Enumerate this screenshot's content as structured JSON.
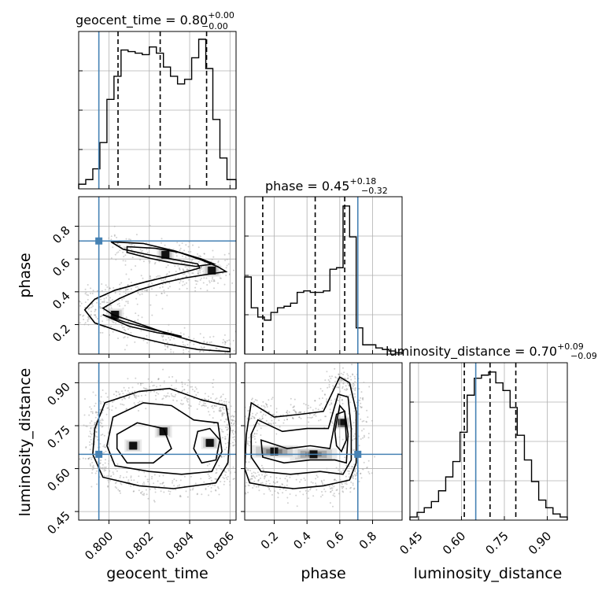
{
  "parameters": [
    {
      "name": "geocent_time",
      "title_prefix": "geocent_time = ",
      "median": "0.80",
      "upper": "+0.00",
      "lower": "−0.00",
      "range": [
        0.7985,
        0.8063
      ],
      "ticks": [
        "0.800",
        "0.802",
        "0.804",
        "0.806"
      ],
      "truth": 0.7995,
      "quantiles": [
        0.80045,
        0.80254,
        0.80484
      ]
    },
    {
      "name": "phase",
      "title_prefix": "phase = ",
      "median": "0.45",
      "upper": "+0.18",
      "lower": "−0.32",
      "range": [
        0.02,
        0.98
      ],
      "ticks": [
        "0.2",
        "0.4",
        "0.6",
        "0.8"
      ],
      "truth": 0.71,
      "quantiles": [
        0.13,
        0.45,
        0.63
      ]
    },
    {
      "name": "luminosity_distance",
      "title_prefix": "luminosity_distance = ",
      "median": "0.70",
      "upper": "+0.09",
      "lower": "−0.09",
      "range": [
        0.42,
        0.97
      ],
      "ticks": [
        "0.45",
        "0.60",
        "0.75",
        "0.90"
      ],
      "truth": 0.65,
      "quantiles": [
        0.61,
        0.7,
        0.79
      ]
    }
  ],
  "chart_data": {
    "type": "corner",
    "title": "",
    "grid": true,
    "truth_color": "#4682b4",
    "contour_color": "#000000",
    "histograms": [
      {
        "param": "geocent_time",
        "bin_edges": [
          0.7985,
          0.79885,
          0.7992,
          0.79955,
          0.7999,
          0.80025,
          0.8006,
          0.80095,
          0.8013,
          0.80165,
          0.802,
          0.80235,
          0.8027,
          0.80305,
          0.8034,
          0.80375,
          0.8041,
          0.80445,
          0.8048,
          0.80515,
          0.8055,
          0.80585,
          0.8063
        ],
        "counts": [
          0.03,
          0.06,
          0.13,
          0.3,
          0.58,
          0.73,
          0.9,
          0.89,
          0.88,
          0.87,
          0.92,
          0.88,
          0.79,
          0.73,
          0.68,
          0.71,
          0.85,
          0.97,
          0.78,
          0.45,
          0.2,
          0.06
        ]
      },
      {
        "param": "phase",
        "bin_edges": [
          0.02,
          0.06,
          0.1,
          0.14,
          0.18,
          0.22,
          0.26,
          0.3,
          0.34,
          0.38,
          0.42,
          0.46,
          0.5,
          0.54,
          0.58,
          0.62,
          0.66,
          0.7,
          0.74,
          0.78,
          0.82,
          0.86,
          0.9,
          0.94,
          0.98
        ],
        "counts": [
          0.5,
          0.3,
          0.24,
          0.22,
          0.27,
          0.3,
          0.31,
          0.33,
          0.4,
          0.41,
          0.4,
          0.4,
          0.41,
          0.55,
          0.56,
          0.96,
          0.76,
          0.17,
          0.06,
          0.06,
          0.04,
          0.03,
          0.02,
          0.01
        ]
      },
      {
        "param": "luminosity_distance",
        "bin_edges": [
          0.42,
          0.445,
          0.47,
          0.495,
          0.52,
          0.545,
          0.57,
          0.595,
          0.62,
          0.645,
          0.67,
          0.695,
          0.72,
          0.745,
          0.77,
          0.795,
          0.82,
          0.845,
          0.87,
          0.895,
          0.92,
          0.945,
          0.97
        ],
        "counts": [
          0.02,
          0.05,
          0.08,
          0.12,
          0.19,
          0.28,
          0.38,
          0.57,
          0.81,
          0.92,
          0.94,
          0.96,
          0.89,
          0.84,
          0.73,
          0.55,
          0.39,
          0.25,
          0.13,
          0.08,
          0.04,
          0.02
        ]
      }
    ],
    "pairs": [
      {
        "x_param": "geocent_time",
        "y_param": "phase",
        "contours": [
          [
            [
              0.8001,
              0.705
            ],
            [
              0.8017,
              0.695
            ],
            [
              0.8033,
              0.648
            ],
            [
              0.8045,
              0.598
            ],
            [
              0.8054,
              0.553
            ],
            [
              0.8058,
              0.523
            ],
            [
              0.8048,
              0.505
            ],
            [
              0.8038,
              0.485
            ],
            [
              0.8027,
              0.455
            ],
            [
              0.8015,
              0.412
            ],
            [
              0.8005,
              0.358
            ],
            [
              0.7997,
              0.3
            ],
            [
              0.8002,
              0.26
            ],
            [
              0.8015,
              0.205
            ],
            [
              0.803,
              0.14
            ],
            [
              0.8046,
              0.085
            ],
            [
              0.806,
              0.055
            ],
            [
              0.806,
              0.035
            ],
            [
              0.8044,
              0.048
            ],
            [
              0.8028,
              0.083
            ],
            [
              0.8012,
              0.13
            ],
            [
              0.7993,
              0.21
            ],
            [
              0.7988,
              0.29
            ],
            [
              0.7993,
              0.355
            ],
            [
              0.8003,
              0.41
            ],
            [
              0.8018,
              0.46
            ],
            [
              0.8033,
              0.505
            ],
            [
              0.8045,
              0.545
            ],
            [
              0.8044,
              0.57
            ],
            [
              0.8031,
              0.6
            ],
            [
              0.8018,
              0.63
            ],
            [
              0.8007,
              0.66
            ],
            [
              0.8001,
              0.705
            ]
          ],
          [
            [
              0.8009,
              0.675
            ],
            [
              0.8023,
              0.665
            ],
            [
              0.8035,
              0.64
            ],
            [
              0.8046,
              0.6
            ],
            [
              0.8052,
              0.57
            ],
            [
              0.8043,
              0.555
            ],
            [
              0.8032,
              0.575
            ],
            [
              0.802,
              0.605
            ],
            [
              0.8009,
              0.64
            ],
            [
              0.8009,
              0.675
            ]
          ],
          [
            [
              0.7997,
              0.26
            ],
            [
              0.8008,
              0.215
            ],
            [
              0.8022,
              0.17
            ],
            [
              0.8036,
              0.128
            ],
            [
              0.8024,
              0.15
            ],
            [
              0.801,
              0.19
            ],
            [
              0.7997,
              0.26
            ]
          ]
        ],
        "density_peaks": [
          [
            0.8028,
            0.625
          ],
          [
            0.8051,
            0.53
          ],
          [
            0.8003,
            0.26
          ]
        ]
      },
      {
        "x_param": "geocent_time",
        "y_param": "luminosity_distance",
        "contours": [
          [
            [
              0.7998,
              0.83
            ],
            [
              0.8015,
              0.87
            ],
            [
              0.803,
              0.88
            ],
            [
              0.8046,
              0.84
            ],
            [
              0.8058,
              0.82
            ],
            [
              0.806,
              0.74
            ],
            [
              0.8059,
              0.62
            ],
            [
              0.8053,
              0.55
            ],
            [
              0.8032,
              0.53
            ],
            [
              0.8015,
              0.54
            ],
            [
              0.7997,
              0.57
            ],
            [
              0.7992,
              0.65
            ],
            [
              0.7993,
              0.74
            ],
            [
              0.7998,
              0.83
            ]
          ],
          [
            [
              0.8002,
              0.78
            ],
            [
              0.8017,
              0.83
            ],
            [
              0.8031,
              0.82
            ],
            [
              0.8042,
              0.77
            ],
            [
              0.8054,
              0.76
            ],
            [
              0.8056,
              0.66
            ],
            [
              0.8051,
              0.59
            ],
            [
              0.8036,
              0.58
            ],
            [
              0.802,
              0.59
            ],
            [
              0.8003,
              0.61
            ],
            [
              0.7999,
              0.68
            ],
            [
              0.8002,
              0.78
            ]
          ],
          [
            [
              0.8004,
              0.72
            ],
            [
              0.8014,
              0.76
            ],
            [
              0.8027,
              0.74
            ],
            [
              0.8031,
              0.67
            ],
            [
              0.8022,
              0.62
            ],
            [
              0.8009,
              0.62
            ],
            [
              0.8004,
              0.67
            ],
            [
              0.8004,
              0.72
            ]
          ],
          [
            [
              0.8044,
              0.73
            ],
            [
              0.805,
              0.74
            ],
            [
              0.8055,
              0.7
            ],
            [
              0.8053,
              0.63
            ],
            [
              0.8046,
              0.62
            ],
            [
              0.8042,
              0.67
            ],
            [
              0.8044,
              0.73
            ]
          ]
        ],
        "density_peaks": [
          [
            0.8012,
            0.68
          ],
          [
            0.805,
            0.69
          ],
          [
            0.8027,
            0.73
          ]
        ]
      },
      {
        "x_param": "phase",
        "y_param": "luminosity_distance",
        "contours": [
          [
            [
              0.06,
              0.83
            ],
            [
              0.2,
              0.78
            ],
            [
              0.36,
              0.79
            ],
            [
              0.5,
              0.8
            ],
            [
              0.6,
              0.92
            ],
            [
              0.66,
              0.9
            ],
            [
              0.7,
              0.8
            ],
            [
              0.7,
              0.62
            ],
            [
              0.66,
              0.56
            ],
            [
              0.5,
              0.54
            ],
            [
              0.32,
              0.53
            ],
            [
              0.15,
              0.54
            ],
            [
              0.05,
              0.55
            ],
            [
              0.02,
              0.6
            ],
            [
              0.03,
              0.72
            ],
            [
              0.06,
              0.83
            ]
          ],
          [
            [
              0.1,
              0.77
            ],
            [
              0.25,
              0.73
            ],
            [
              0.4,
              0.74
            ],
            [
              0.53,
              0.74
            ],
            [
              0.59,
              0.86
            ],
            [
              0.65,
              0.85
            ],
            [
              0.67,
              0.74
            ],
            [
              0.67,
              0.63
            ],
            [
              0.62,
              0.58
            ],
            [
              0.48,
              0.59
            ],
            [
              0.3,
              0.58
            ],
            [
              0.12,
              0.59
            ],
            [
              0.06,
              0.64
            ],
            [
              0.06,
              0.72
            ],
            [
              0.1,
              0.77
            ]
          ],
          [
            [
              0.12,
              0.7
            ],
            [
              0.28,
              0.67
            ],
            [
              0.42,
              0.68
            ],
            [
              0.54,
              0.67
            ],
            [
              0.58,
              0.79
            ],
            [
              0.63,
              0.8
            ],
            [
              0.65,
              0.72
            ],
            [
              0.64,
              0.62
            ],
            [
              0.57,
              0.63
            ],
            [
              0.42,
              0.63
            ],
            [
              0.26,
              0.62
            ],
            [
              0.13,
              0.64
            ],
            [
              0.12,
              0.7
            ]
          ],
          [
            [
              0.57,
              0.73
            ],
            [
              0.6,
              0.82
            ],
            [
              0.63,
              0.8
            ],
            [
              0.64,
              0.7
            ],
            [
              0.61,
              0.66
            ],
            [
              0.58,
              0.68
            ],
            [
              0.57,
              0.73
            ]
          ]
        ],
        "density_peaks": [
          [
            0.615,
            0.76
          ],
          [
            0.44,
            0.65
          ],
          [
            0.2,
            0.66
          ]
        ]
      }
    ]
  }
}
